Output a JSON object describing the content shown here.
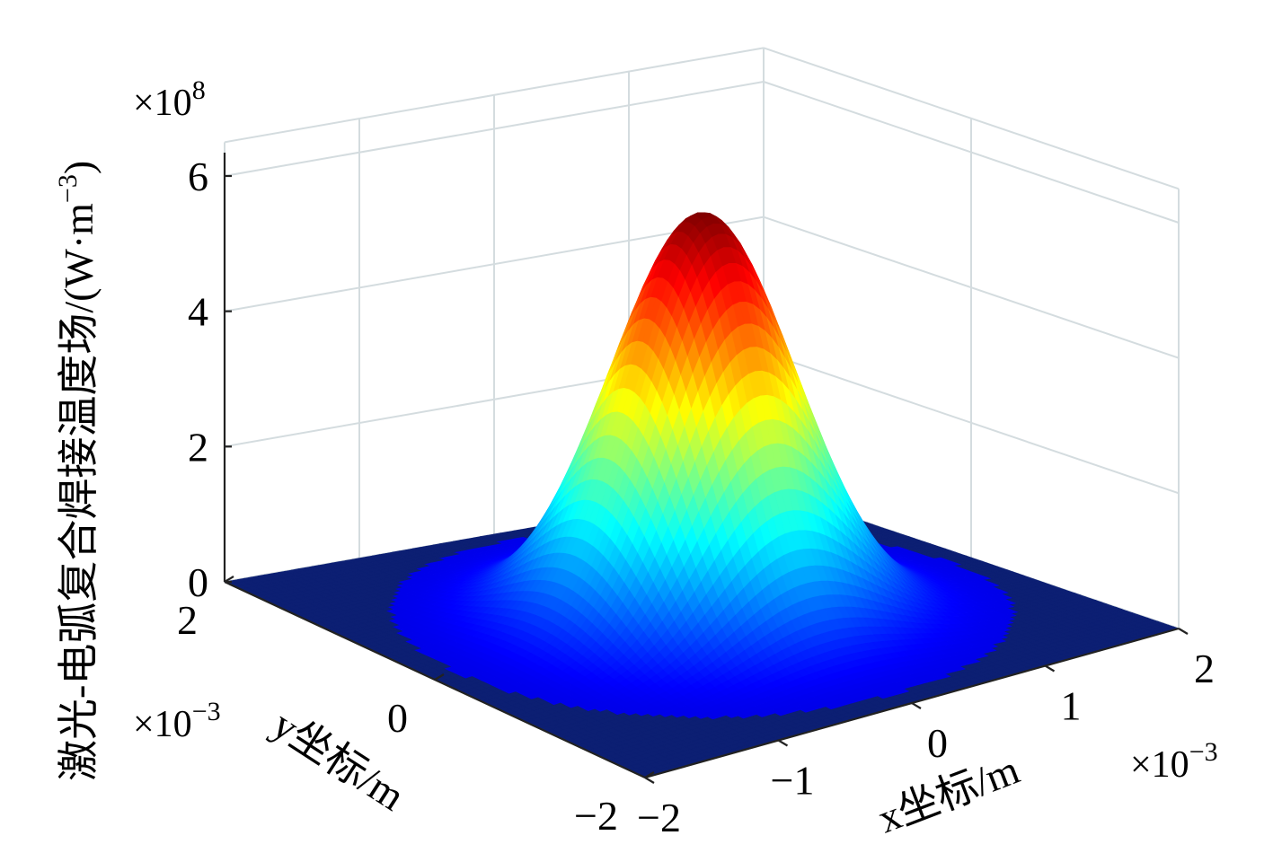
{
  "chart_data": {
    "type": "surface",
    "colormap": "jet",
    "surface_function": "gaussian",
    "peak_value": 600000000.0,
    "peak_x": 0,
    "peak_y": 0,
    "sigma": 0.00055,
    "x_range": [
      -0.002,
      0.002
    ],
    "y_range": [
      -0.002,
      0.002
    ],
    "z_range": [
      0,
      600000000.0
    ],
    "x_ticks": [
      -2,
      -1,
      0,
      1,
      2
    ],
    "y_ticks": [
      -2,
      0,
      2
    ],
    "z_ticks": [
      0,
      2,
      4,
      6
    ],
    "x_tick_labels": [
      "−2",
      "−1",
      "0",
      "1",
      "2"
    ],
    "y_tick_labels": [
      "−2",
      "0",
      "2"
    ],
    "z_tick_labels": [
      "0",
      "2",
      "4",
      "6"
    ],
    "x_exponent": {
      "base": "×10",
      "power": "−3"
    },
    "y_exponent": {
      "base": "×10",
      "power": "−3"
    },
    "z_exponent": {
      "base": "×10",
      "power": "8"
    },
    "xlabel": "x坐标/m",
    "ylabel": "y坐标/m",
    "zlabel": "激光-电弧复合焊接温度场/(W·m",
    "zlabel_power": "−3",
    "zlabel_close": ")",
    "grid": true
  }
}
